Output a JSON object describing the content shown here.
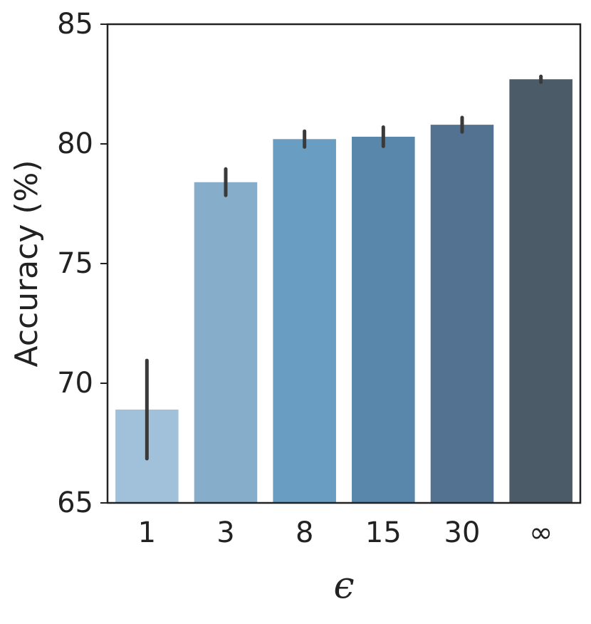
{
  "chart_data": {
    "type": "bar",
    "x_label": "ϵ",
    "y_label": "Accuracy (%)",
    "categories": [
      "1",
      "3",
      "8",
      "15",
      "30",
      "∞"
    ],
    "values": [
      68.9,
      78.4,
      80.2,
      80.3,
      80.8,
      82.7
    ],
    "errors": [
      2.05,
      0.55,
      0.33,
      0.4,
      0.3,
      0.12
    ],
    "colors": [
      "#a1c1da",
      "#86aecb",
      "#6a9dc2",
      "#5887ab",
      "#537292",
      "#4b5b67"
    ],
    "error_color": "#3a3a3a",
    "ylim": [
      65,
      85
    ],
    "yticks": [
      65,
      70,
      75,
      80,
      85
    ]
  }
}
